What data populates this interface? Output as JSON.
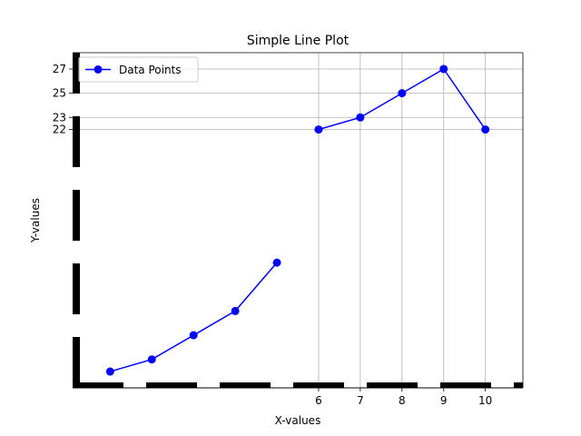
{
  "chart_data": {
    "type": "line",
    "title": "Simple Line Plot",
    "xlabel": "X-values",
    "ylabel": "Y-values",
    "x": [
      1,
      2,
      3,
      4,
      5,
      6,
      7,
      8,
      9,
      10
    ],
    "series": [
      {
        "name": "Data Points",
        "values": [
          2,
          3,
          5,
          7,
          11,
          22,
          23,
          25,
          27,
          22
        ],
        "color": "#0000ff",
        "marker": "circle",
        "segments": [
          [
            0,
            4
          ],
          [
            5,
            9
          ]
        ]
      }
    ],
    "xticks": [
      6,
      7,
      8,
      9,
      10
    ],
    "yticks": [
      22,
      23,
      25,
      27
    ],
    "xlim": [
      0.1,
      10.9
    ],
    "ylim": [
      0.65,
      28.35
    ],
    "grid": "ticks-only",
    "legend_position": "top-left",
    "axis_style": {
      "spine_color": "#000000",
      "bottom_spine": "dashed",
      "left_spine": "dashed"
    }
  }
}
